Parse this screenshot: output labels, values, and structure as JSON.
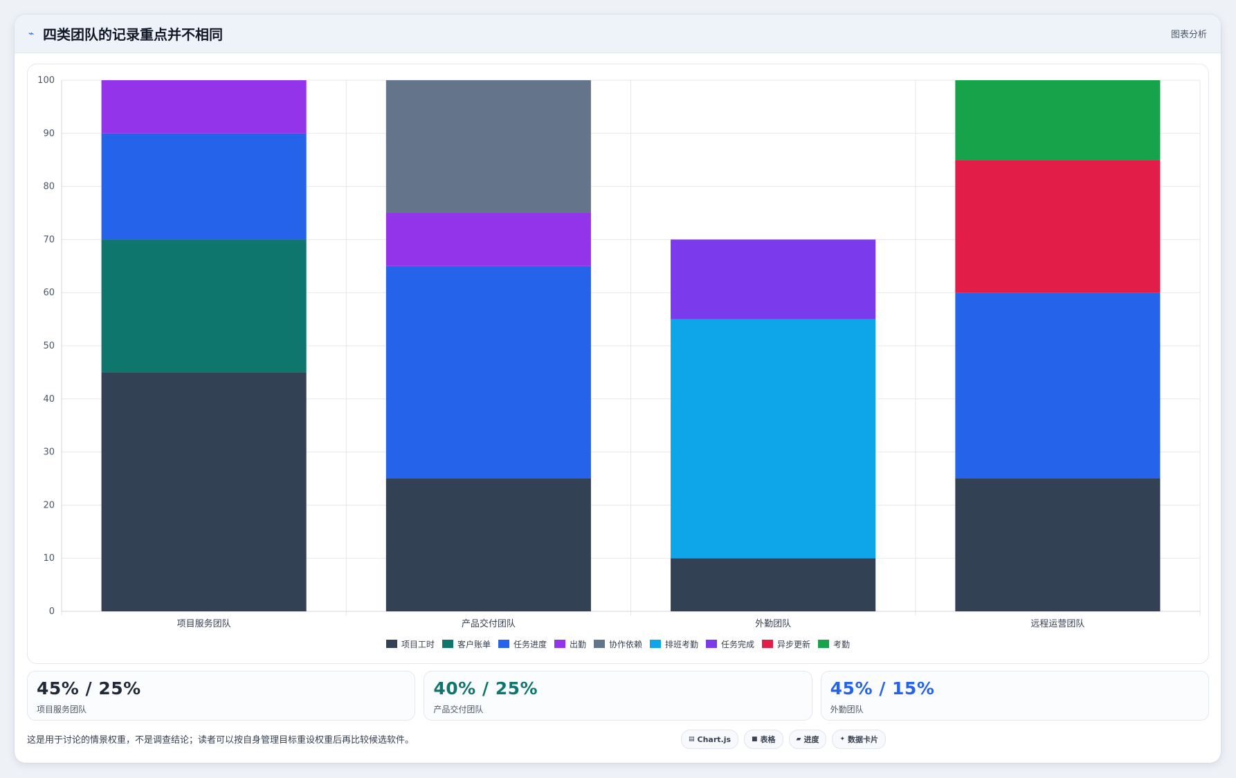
{
  "header": {
    "title": "四类团队的记录重点并不相同",
    "right_label": "图表分析",
    "icon": "trend-line-icon"
  },
  "chart_data": {
    "type": "bar",
    "stacked": true,
    "title": "",
    "xlabel": "",
    "ylabel": "",
    "ylim": [
      0,
      100
    ],
    "yticks": [
      0,
      10,
      20,
      30,
      40,
      50,
      60,
      70,
      80,
      90,
      100
    ],
    "grid": true,
    "legend_position": "bottom",
    "categories": [
      "项目服务团队",
      "产品交付团队",
      "外勤团队",
      "远程运营团队"
    ],
    "series": [
      {
        "name": "项目工时",
        "color": "#334155",
        "values": [
          45,
          25,
          10,
          25
        ]
      },
      {
        "name": "客户账单",
        "color": "#0f766e",
        "values": [
          25,
          0,
          0,
          0
        ]
      },
      {
        "name": "任务进度",
        "color": "#2563eb",
        "values": [
          20,
          40,
          0,
          35
        ]
      },
      {
        "name": "出勤",
        "color": "#9333ea",
        "values": [
          10,
          10,
          0,
          0
        ]
      },
      {
        "name": "协作依赖",
        "color": "#64748b",
        "values": [
          0,
          25,
          0,
          0
        ]
      },
      {
        "name": "排班考勤",
        "color": "#0ea5e9",
        "values": [
          0,
          0,
          45,
          0
        ]
      },
      {
        "name": "任务完成",
        "color": "#7c3aed",
        "values": [
          0,
          0,
          15,
          0
        ]
      },
      {
        "name": "异步更新",
        "color": "#e11d48",
        "values": [
          0,
          0,
          0,
          25
        ]
      },
      {
        "name": "考勤",
        "color": "#16a34a",
        "values": [
          0,
          0,
          0,
          15
        ]
      }
    ]
  },
  "stats": [
    {
      "value": "45% / 25%",
      "label": "项目服务团队",
      "color": "#1f2937"
    },
    {
      "value": "40% / 25%",
      "label": "产品交付团队",
      "color": "#0f766e"
    },
    {
      "value": "45% / 15%",
      "label": "外勤团队",
      "color": "#2563eb"
    }
  ],
  "footer": {
    "note": "这是用于讨论的情景权重，不是调查结论；读者可以按自身管理目标重设权重后再比较候选软件。",
    "tags": [
      {
        "icon": "chart-icon",
        "glyph": "▤",
        "label": "Chart.js"
      },
      {
        "icon": "table-icon",
        "glyph": "■",
        "label": "表格"
      },
      {
        "icon": "progress-icon",
        "glyph": "▰",
        "label": "进度"
      },
      {
        "icon": "data-card-icon",
        "glyph": "✦",
        "label": "数据卡片"
      }
    ]
  }
}
